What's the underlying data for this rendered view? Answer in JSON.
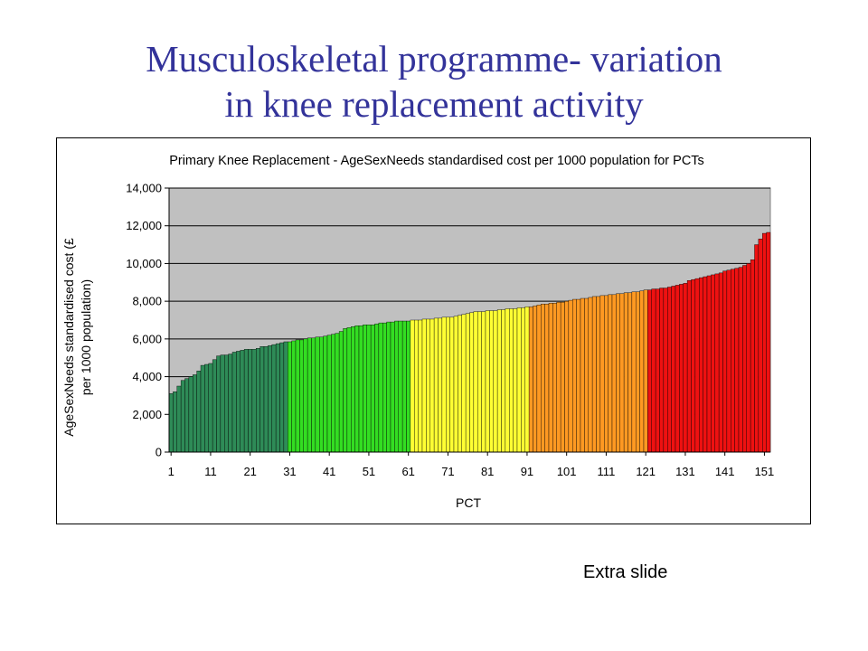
{
  "slide": {
    "title_line1": "Musculoskeletal programme- variation",
    "title_line2": "in knee replacement activity",
    "footer_note": "Extra slide"
  },
  "chart_data": {
    "type": "bar",
    "title": "Primary Knee Replacement - AgeSexNeeds standardised cost per 1000 population for PCTs",
    "xlabel": "PCT",
    "ylabel_line1": "AgeSexNeeds standardised cost (£",
    "ylabel_line2": "per 1000 population)",
    "ylim": [
      0,
      14000
    ],
    "yticks": [
      0,
      2000,
      4000,
      6000,
      8000,
      10000,
      12000,
      14000
    ],
    "ytick_labels": [
      "0",
      "2,000",
      "4,000",
      "6,000",
      "8,000",
      "10,000",
      "12,000",
      "14,000"
    ],
    "xtick_labels": [
      "1",
      "11",
      "21",
      "31",
      "41",
      "51",
      "61",
      "71",
      "81",
      "91",
      "101",
      "111",
      "121",
      "131",
      "141",
      "151"
    ],
    "grid": true,
    "plot_background": "#c0c0c0",
    "color_bands": [
      {
        "from": 1,
        "to": 30,
        "color": "#2e8b57"
      },
      {
        "from": 31,
        "to": 61,
        "color": "#33dd22"
      },
      {
        "from": 62,
        "to": 91,
        "color": "#ffff33"
      },
      {
        "from": 92,
        "to": 121,
        "color": "#ff9922"
      },
      {
        "from": 122,
        "to": 152,
        "color": "#ee1111"
      }
    ],
    "categories": [
      1,
      2,
      3,
      4,
      5,
      6,
      7,
      8,
      9,
      10,
      11,
      12,
      13,
      14,
      15,
      16,
      17,
      18,
      19,
      20,
      21,
      22,
      23,
      24,
      25,
      26,
      27,
      28,
      29,
      30,
      31,
      32,
      33,
      34,
      35,
      36,
      37,
      38,
      39,
      40,
      41,
      42,
      43,
      44,
      45,
      46,
      47,
      48,
      49,
      50,
      51,
      52,
      53,
      54,
      55,
      56,
      57,
      58,
      59,
      60,
      61,
      62,
      63,
      64,
      65,
      66,
      67,
      68,
      69,
      70,
      71,
      72,
      73,
      74,
      75,
      76,
      77,
      78,
      79,
      80,
      81,
      82,
      83,
      84,
      85,
      86,
      87,
      88,
      89,
      90,
      91,
      92,
      93,
      94,
      95,
      96,
      97,
      98,
      99,
      100,
      101,
      102,
      103,
      104,
      105,
      106,
      107,
      108,
      109,
      110,
      111,
      112,
      113,
      114,
      115,
      116,
      117,
      118,
      119,
      120,
      121,
      122,
      123,
      124,
      125,
      126,
      127,
      128,
      129,
      130,
      131,
      132,
      133,
      134,
      135,
      136,
      137,
      138,
      139,
      140,
      141,
      142,
      143,
      144,
      145,
      146,
      147,
      148,
      149,
      150,
      151,
      152
    ],
    "values": [
      3100,
      3200,
      3500,
      3800,
      3900,
      4000,
      4100,
      4300,
      4600,
      4650,
      4700,
      4900,
      5100,
      5150,
      5150,
      5200,
      5300,
      5350,
      5400,
      5450,
      5450,
      5450,
      5500,
      5600,
      5600,
      5650,
      5700,
      5750,
      5800,
      5850,
      5850,
      5900,
      5950,
      5950,
      6000,
      6050,
      6050,
      6100,
      6100,
      6150,
      6200,
      6250,
      6300,
      6400,
      6550,
      6600,
      6650,
      6700,
      6700,
      6750,
      6750,
      6750,
      6800,
      6850,
      6850,
      6900,
      6900,
      6950,
      6950,
      6950,
      6950,
      7000,
      7000,
      7000,
      7050,
      7050,
      7050,
      7100,
      7100,
      7150,
      7150,
      7150,
      7200,
      7250,
      7300,
      7350,
      7400,
      7450,
      7450,
      7450,
      7500,
      7500,
      7500,
      7550,
      7550,
      7600,
      7600,
      7600,
      7650,
      7650,
      7700,
      7700,
      7750,
      7800,
      7850,
      7850,
      7900,
      7900,
      7950,
      7950,
      8000,
      8050,
      8100,
      8100,
      8150,
      8150,
      8200,
      8250,
      8250,
      8300,
      8300,
      8350,
      8350,
      8400,
      8400,
      8450,
      8450,
      8500,
      8500,
      8550,
      8600,
      8600,
      8650,
      8650,
      8700,
      8700,
      8750,
      8800,
      8850,
      8900,
      8950,
      9100,
      9150,
      9200,
      9250,
      9300,
      9350,
      9400,
      9450,
      9500,
      9600,
      9650,
      9700,
      9750,
      9800,
      9900,
      10000,
      10200,
      11000,
      11300,
      11600,
      11650
    ]
  }
}
